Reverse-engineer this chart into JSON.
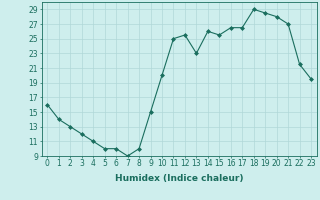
{
  "x": [
    0,
    1,
    2,
    3,
    4,
    5,
    6,
    7,
    8,
    9,
    10,
    11,
    12,
    13,
    14,
    15,
    16,
    17,
    18,
    19,
    20,
    21,
    22,
    23
  ],
  "y": [
    16,
    14,
    13,
    12,
    11,
    10,
    10,
    9,
    10,
    15,
    20,
    25,
    25.5,
    23,
    26,
    25.5,
    26.5,
    26.5,
    29,
    28.5,
    28,
    27,
    21.5,
    19.5
  ],
  "line_color": "#1a6e5e",
  "marker": "D",
  "marker_size": 2.0,
  "bg_color": "#ceeeed",
  "grid_color": "#b0d8d8",
  "xlabel": "Humidex (Indice chaleur)",
  "xlim": [
    -0.5,
    23.5
  ],
  "ylim": [
    9,
    30
  ],
  "yticks": [
    9,
    11,
    13,
    15,
    17,
    19,
    21,
    23,
    25,
    27,
    29
  ],
  "xtick_labels": [
    "0",
    "1",
    "2",
    "3",
    "4",
    "5",
    "6",
    "7",
    "8",
    "9",
    "10",
    "11",
    "12",
    "13",
    "14",
    "15",
    "16",
    "17",
    "18",
    "19",
    "20",
    "21",
    "22",
    "23"
  ],
  "label_fontsize": 6.5,
  "tick_fontsize": 5.5,
  "linewidth": 0.8
}
